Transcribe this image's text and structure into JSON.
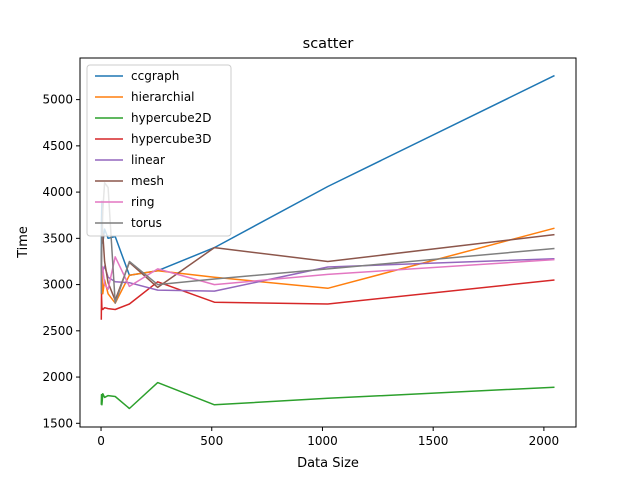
{
  "chart_data": {
    "type": "line",
    "title": "scatter",
    "xlabel": "Data Size",
    "ylabel": "Time",
    "xlim": [
      -95,
      2145
    ],
    "ylim": [
      1460,
      5450
    ],
    "xticks": [
      0,
      500,
      1000,
      1500,
      2000
    ],
    "yticks": [
      1500,
      2000,
      2500,
      3000,
      3500,
      4000,
      4500,
      5000
    ],
    "legend_position": "top-left",
    "series": [
      {
        "name": "ccgraph",
        "color": "#1f77b4",
        "x": [
          1,
          2,
          4,
          8,
          16,
          32,
          64,
          128,
          256,
          512,
          1024,
          2048
        ],
        "y": [
          3100,
          3700,
          3900,
          3450,
          3600,
          3500,
          3520,
          3100,
          3150,
          3400,
          4060,
          5260
        ]
      },
      {
        "name": "hierarchial",
        "color": "#ff7f0e",
        "x": [
          1,
          2,
          4,
          8,
          16,
          32,
          64,
          128,
          256,
          512,
          1024,
          2048
        ],
        "y": [
          3000,
          3080,
          3150,
          2900,
          3050,
          2900,
          2800,
          3100,
          3150,
          3080,
          2960,
          3610
        ]
      },
      {
        "name": "hypercube2D",
        "color": "#2ca02c",
        "x": [
          1,
          2,
          4,
          8,
          16,
          32,
          64,
          128,
          256,
          512,
          1024,
          2048
        ],
        "y": [
          1700,
          1810,
          1700,
          1820,
          1780,
          1800,
          1790,
          1660,
          1940,
          1700,
          1770,
          1890
        ]
      },
      {
        "name": "hypercube3D",
        "color": "#d62728",
        "x": [
          1,
          2,
          4,
          8,
          16,
          32,
          64,
          128,
          256,
          512,
          1024,
          2048
        ],
        "y": [
          2620,
          2900,
          2750,
          2730,
          2750,
          2740,
          2730,
          2790,
          3030,
          2810,
          2790,
          3050
        ]
      },
      {
        "name": "linear",
        "color": "#9467bd",
        "x": [
          1,
          2,
          4,
          8,
          16,
          32,
          64,
          128,
          256,
          512,
          1024,
          2048
        ],
        "y": [
          3050,
          3120,
          3180,
          3150,
          3200,
          3080,
          3030,
          3020,
          2940,
          2930,
          3190,
          3280
        ]
      },
      {
        "name": "mesh",
        "color": "#8c564b",
        "x": [
          1,
          2,
          4,
          8,
          16,
          32,
          64,
          128,
          256,
          512,
          1024,
          2048
        ],
        "y": [
          3100,
          3300,
          3500,
          3550,
          3250,
          3020,
          2830,
          3240,
          2970,
          3400,
          3250,
          3540
        ]
      },
      {
        "name": "ring",
        "color": "#e377c2",
        "x": [
          1,
          2,
          4,
          8,
          16,
          32,
          64,
          128,
          256,
          512,
          1024,
          2048
        ],
        "y": [
          2950,
          3140,
          3200,
          3180,
          3000,
          2950,
          3300,
          2980,
          3170,
          3000,
          3110,
          3270
        ]
      },
      {
        "name": "torus",
        "color": "#7f7f7f",
        "x": [
          1,
          2,
          4,
          8,
          16,
          32,
          64,
          128,
          256,
          512,
          1024,
          2048
        ],
        "y": [
          2900,
          3350,
          3500,
          3800,
          4100,
          4050,
          2800,
          3250,
          3000,
          3060,
          3170,
          3390
        ]
      }
    ]
  }
}
